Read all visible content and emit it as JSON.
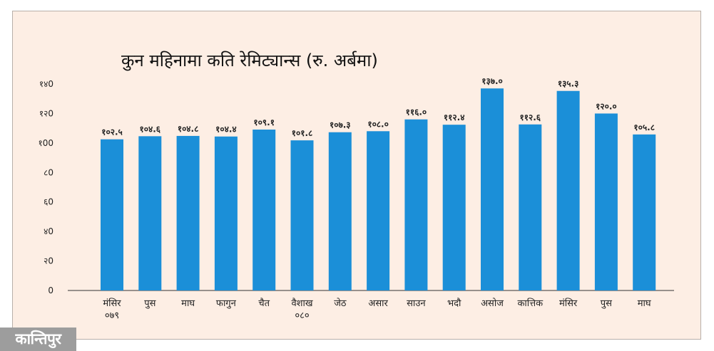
{
  "logo": {
    "text": "कान्तिपुर"
  },
  "chart_data": {
    "type": "bar",
    "title": "कुन महिनामा कति रेमिट्यान्स (रु. अर्बमा)",
    "xlabel": "",
    "ylabel": "",
    "ylim": [
      0,
      140
    ],
    "yticks": [
      0,
      20,
      40,
      60,
      80,
      100,
      120,
      140
    ],
    "ytick_labels": [
      "0",
      "२0",
      "४0",
      "६0",
      "८0",
      "१00",
      "१२0",
      "१४0"
    ],
    "categories": [
      [
        "मंसिर",
        "०७९"
      ],
      [
        "पुस"
      ],
      [
        "माघ"
      ],
      [
        "फागुन"
      ],
      [
        "चैत"
      ],
      [
        "वैशाख",
        "०८०"
      ],
      [
        "जेठ"
      ],
      [
        "असार"
      ],
      [
        "साउन"
      ],
      [
        "भदौ"
      ],
      [
        "असोज"
      ],
      [
        "कात्तिक"
      ],
      [
        "मंसिर"
      ],
      [
        "पुस"
      ],
      [
        "माघ"
      ]
    ],
    "values": [
      102.5,
      104.6,
      104.8,
      104.4,
      109.1,
      101.8,
      107.3,
      108.0,
      116.0,
      112.4,
      137.0,
      112.6,
      135.3,
      120.0,
      105.8
    ],
    "value_labels": [
      "१०२.५",
      "१०४.६",
      "१०४.८",
      "१०४.४",
      "१०९.१",
      "१०१.८",
      "१०७.३",
      "१०८.०",
      "११६.०",
      "११२.४",
      "१३७.०",
      "११२.६",
      "१३५.३",
      "१२०.०",
      "१०५.८"
    ],
    "bar_color": "#1b8fd8",
    "grid": false
  }
}
